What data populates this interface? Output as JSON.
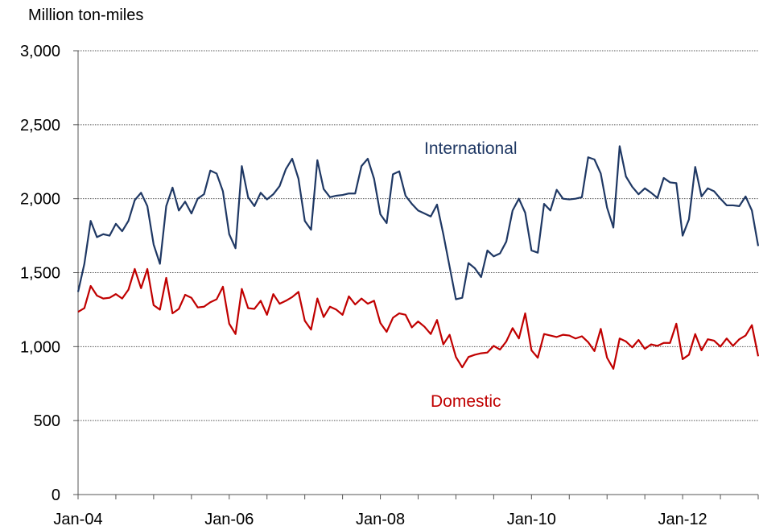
{
  "chart_data": {
    "type": "line",
    "ylabel": "Million ton-miles",
    "ylim": [
      0,
      3000
    ],
    "yticks": [
      "0",
      "500",
      "1,000",
      "1,500",
      "2,000",
      "2,500",
      "3,000"
    ],
    "ytick_values": [
      0,
      500,
      1000,
      1500,
      2000,
      2500,
      3000
    ],
    "xlim": [
      "2004-01",
      "2013-01"
    ],
    "xticks": [
      "Jan-04",
      "Jan-06",
      "Jan-08",
      "Jan-10",
      "Jan-12"
    ],
    "xtick_dates": [
      "2004-01",
      "2006-01",
      "2008-01",
      "2010-01",
      "2012-01"
    ],
    "grid": true,
    "x_start": "2004-01",
    "series": [
      {
        "name": "International",
        "color": "#1f3864",
        "values": [
          1370,
          1560,
          1850,
          1740,
          1760,
          1750,
          1830,
          1780,
          1850,
          1990,
          2040,
          1950,
          1690,
          1560,
          1950,
          2075,
          1920,
          1980,
          1900,
          2000,
          2030,
          2190,
          2170,
          2050,
          1760,
          1665,
          2220,
          2010,
          1950,
          2040,
          1995,
          2030,
          2085,
          2200,
          2270,
          2135,
          1850,
          1790,
          2260,
          2065,
          2010,
          2020,
          2025,
          2035,
          2035,
          2220,
          2270,
          2135,
          1895,
          1835,
          2165,
          2185,
          2020,
          1965,
          1920,
          1900,
          1880,
          1960,
          1760,
          1540,
          1320,
          1330,
          1565,
          1530,
          1470,
          1650,
          1610,
          1630,
          1710,
          1920,
          2000,
          1905,
          1650,
          1635,
          1965,
          1920,
          2060,
          2000,
          1995,
          2000,
          2010,
          2280,
          2265,
          2170,
          1940,
          1805,
          2355,
          2150,
          2080,
          2030,
          2070,
          2040,
          2005,
          2140,
          2110,
          2105,
          1750,
          1860,
          2215,
          2015,
          2070,
          2050,
          2000,
          1955,
          1955,
          1950,
          2015,
          1920,
          1680
        ]
      },
      {
        "name": "Domestic",
        "color": "#c00000",
        "values": [
          1235,
          1260,
          1410,
          1345,
          1325,
          1330,
          1355,
          1325,
          1385,
          1525,
          1395,
          1525,
          1280,
          1250,
          1465,
          1225,
          1255,
          1350,
          1330,
          1265,
          1270,
          1300,
          1320,
          1405,
          1155,
          1085,
          1390,
          1260,
          1255,
          1310,
          1215,
          1355,
          1290,
          1310,
          1335,
          1370,
          1175,
          1115,
          1325,
          1200,
          1270,
          1250,
          1215,
          1340,
          1285,
          1325,
          1290,
          1310,
          1160,
          1100,
          1195,
          1225,
          1215,
          1130,
          1170,
          1135,
          1085,
          1180,
          1015,
          1080,
          930,
          860,
          930,
          945,
          955,
          960,
          1005,
          980,
          1035,
          1125,
          1055,
          1225,
          975,
          925,
          1085,
          1075,
          1065,
          1080,
          1075,
          1055,
          1070,
          1030,
          970,
          1120,
          925,
          850,
          1055,
          1035,
          995,
          1045,
          985,
          1015,
          1005,
          1025,
          1025,
          1155,
          915,
          945,
          1085,
          975,
          1050,
          1040,
          1000,
          1055,
          1005,
          1050,
          1075,
          1145,
          935
        ]
      }
    ]
  }
}
